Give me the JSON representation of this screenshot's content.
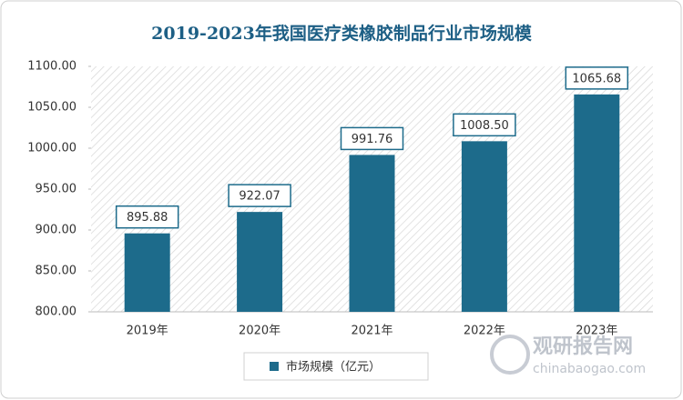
{
  "chart_data": {
    "type": "bar",
    "title": "2019-2023年我国医疗类橡胶制品行业市场规模",
    "categories": [
      "2019年",
      "2020年",
      "2021年",
      "2022年",
      "2023年"
    ],
    "series": [
      {
        "name": "市场规模（亿元）",
        "color": "#1d6b8b",
        "values": [
          895.88,
          922.07,
          991.76,
          1008.5,
          1065.68
        ],
        "value_labels": [
          "895.88",
          "922.07",
          "991.76",
          "1008.50",
          "1065.68"
        ]
      }
    ],
    "ylim": [
      800,
      1100
    ],
    "yticks": [
      {
        "value": 800,
        "label": "800.00"
      },
      {
        "value": 850,
        "label": "850.00"
      },
      {
        "value": 900,
        "label": "900.00"
      },
      {
        "value": 950,
        "label": "950.00"
      },
      {
        "value": 1000,
        "label": "1000.00"
      },
      {
        "value": 1050,
        "label": "1050.00"
      },
      {
        "value": 1100,
        "label": "1100.00"
      }
    ],
    "legend": "bottom",
    "watermark": [
      "观研报告网",
      "chinabaogao.com"
    ]
  }
}
